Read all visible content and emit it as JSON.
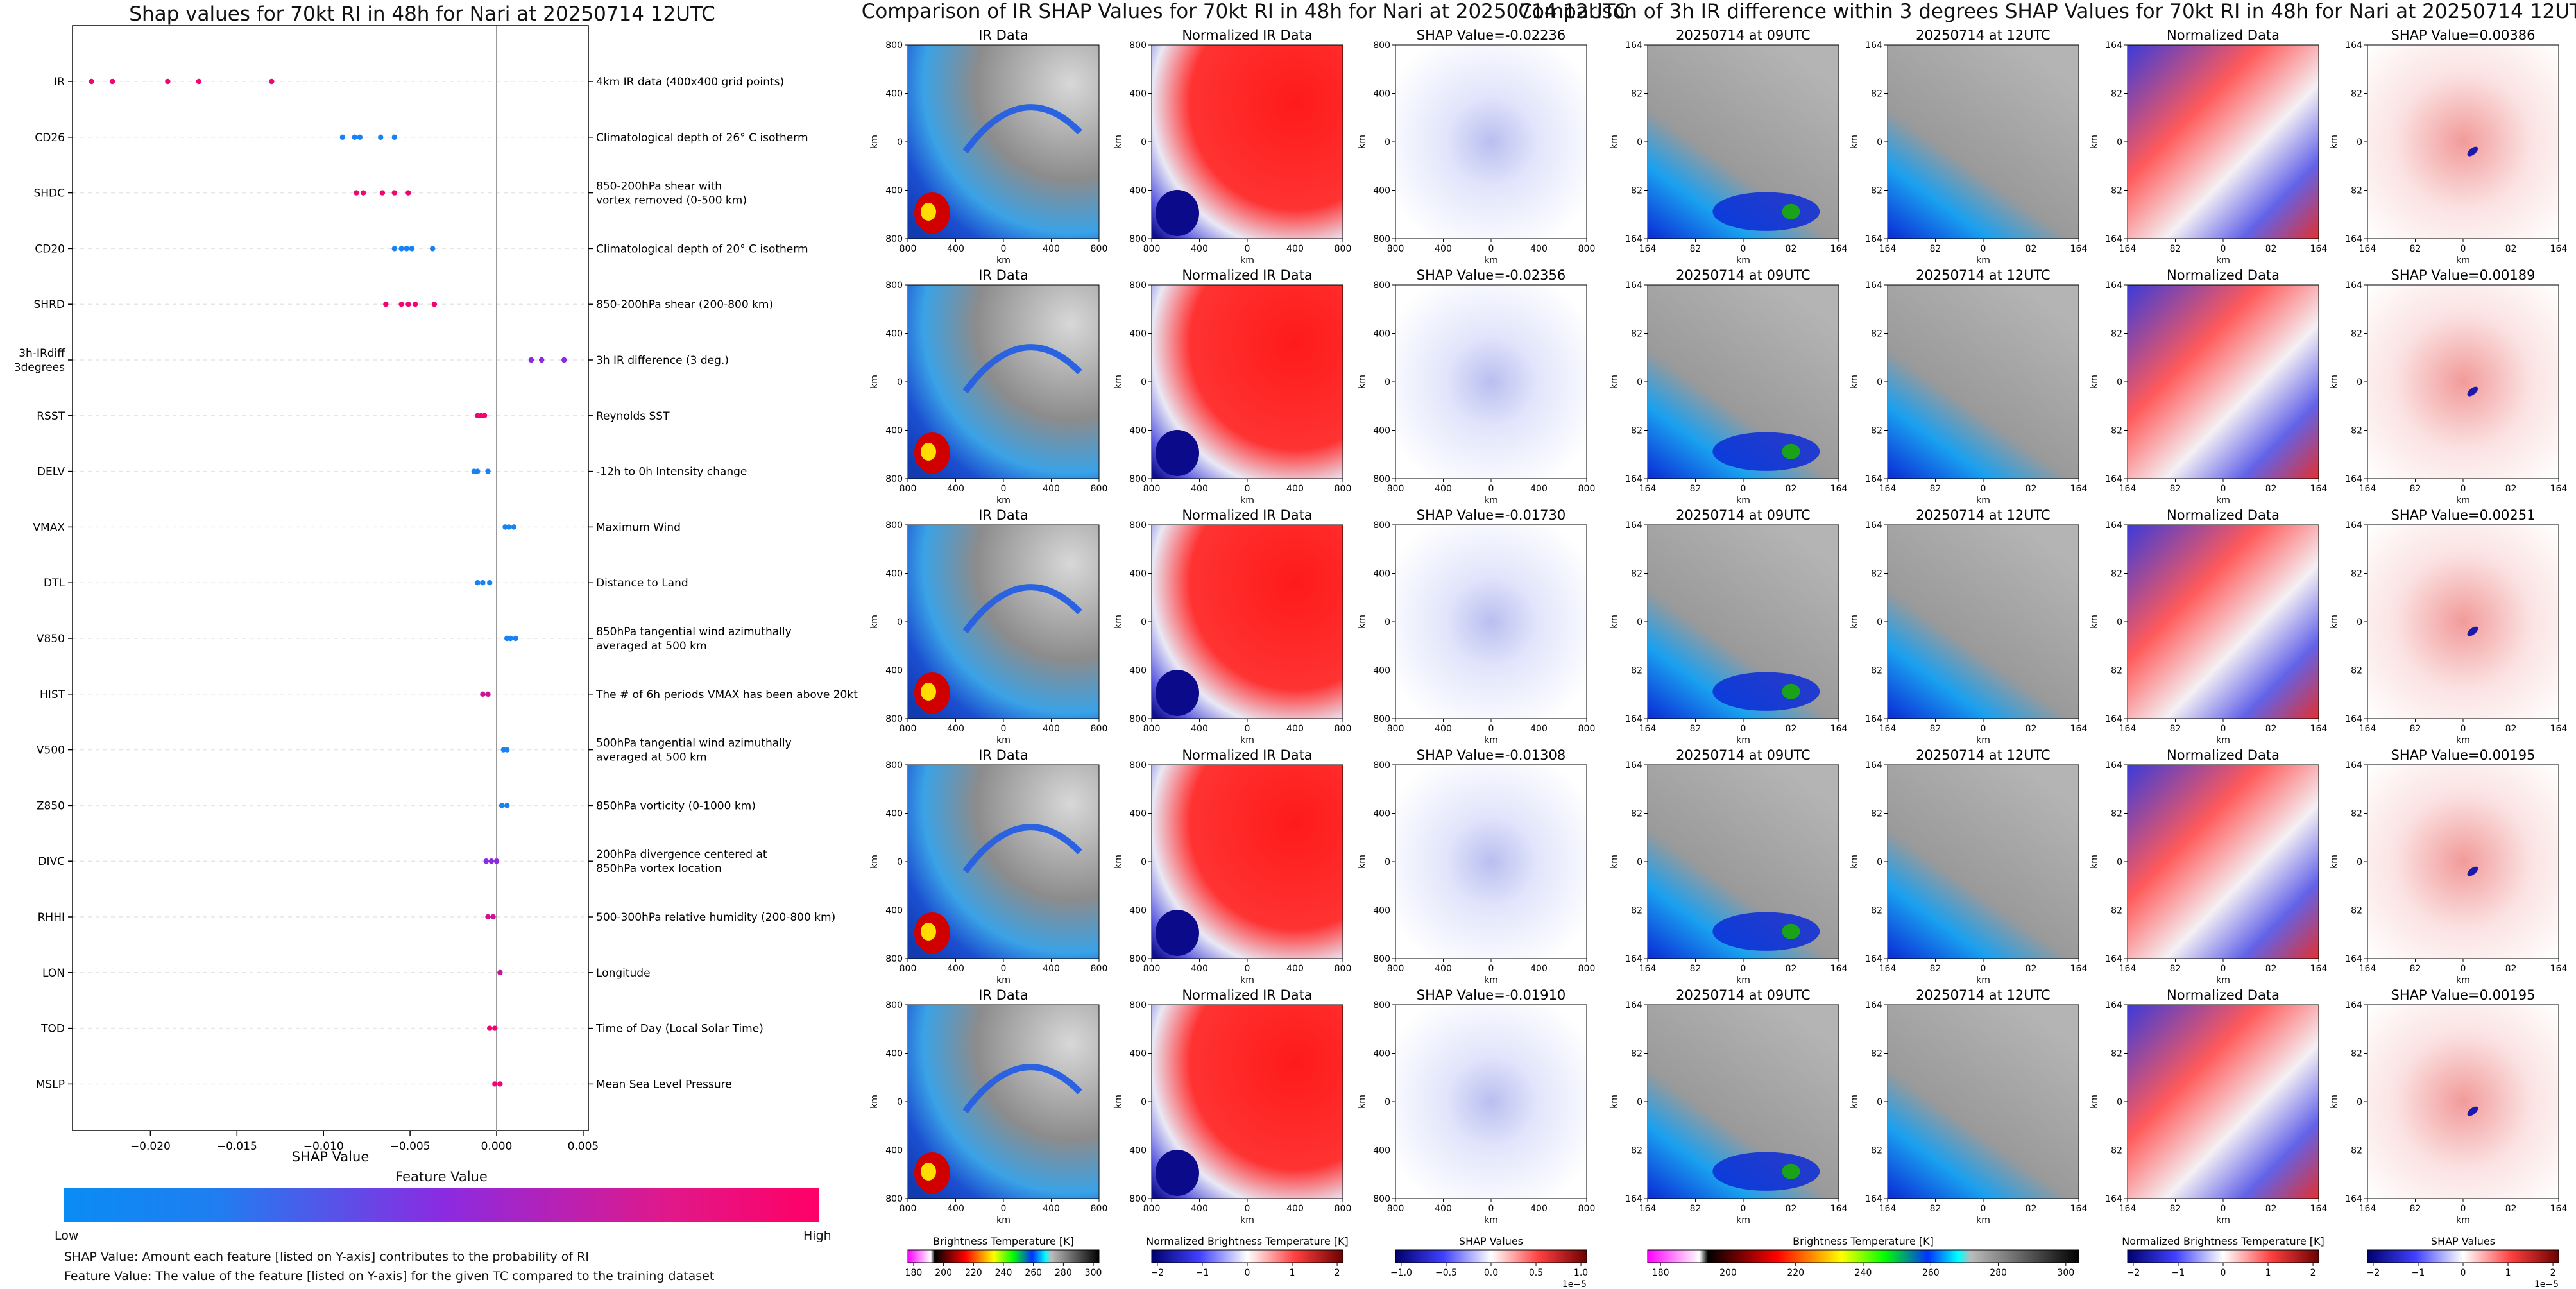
{
  "colors": {
    "low": "#0a8cf5",
    "mid": "#8a2be2",
    "high": "#ff0066",
    "axis": "#000000",
    "zero_line": "#999999"
  },
  "left_panel": {
    "title": "Shap values for 70kt RI in 48h for Nari at 20250714 12UTC",
    "xlabel": "SHAP Value",
    "colorbar_title": "Feature Value",
    "colorbar_low": "Low",
    "colorbar_high": "High",
    "footnote1": "SHAP Value: Amount each feature [listed on Y-axis] contributes to the probability of RI",
    "footnote2": "Feature Value: The value of the feature [listed on Y-axis] for the given TC compared to the training dataset"
  },
  "chart_data": [
    {
      "type": "scatter",
      "title": "Shap values for 70kt RI in 48h for Nari at 20250714 12UTC",
      "xlabel": "SHAP Value",
      "xlim": [
        -0.0245,
        0.0053
      ],
      "xticks": [
        -0.02,
        -0.015,
        -0.01,
        -0.005,
        0.0,
        0.005
      ],
      "xtick_labels": [
        "−0.020",
        "−0.015",
        "−0.010",
        "−0.005",
        "0.000",
        "0.005"
      ],
      "features": [
        {
          "code": "IR",
          "desc": "4km IR data (400x400 grid points)",
          "points": [
            {
              "x": -0.0234,
              "c": 0.95
            },
            {
              "x": -0.0222,
              "c": 0.95
            },
            {
              "x": -0.019,
              "c": 0.95
            },
            {
              "x": -0.0172,
              "c": 0.95
            },
            {
              "x": -0.013,
              "c": 0.95
            }
          ]
        },
        {
          "code": "CD26",
          "desc": "Climatological depth of 26° C isotherm",
          "points": [
            {
              "x": -0.0089,
              "c": 0.05
            },
            {
              "x": -0.0082,
              "c": 0.05
            },
            {
              "x": -0.0079,
              "c": 0.05
            },
            {
              "x": -0.0067,
              "c": 0.05
            },
            {
              "x": -0.0059,
              "c": 0.05
            }
          ]
        },
        {
          "code": "SHDC",
          "desc": "850-200hPa shear with\nvortex removed (0-500 km)",
          "points": [
            {
              "x": -0.0081,
              "c": 0.95
            },
            {
              "x": -0.0077,
              "c": 0.95
            },
            {
              "x": -0.0066,
              "c": 0.95
            },
            {
              "x": -0.0059,
              "c": 0.95
            },
            {
              "x": -0.0051,
              "c": 0.95
            }
          ]
        },
        {
          "code": "CD20",
          "desc": "Climatological depth of 20° C isotherm",
          "points": [
            {
              "x": -0.0059,
              "c": 0.05
            },
            {
              "x": -0.0055,
              "c": 0.05
            },
            {
              "x": -0.0052,
              "c": 0.05
            },
            {
              "x": -0.0049,
              "c": 0.05
            },
            {
              "x": -0.0037,
              "c": 0.05
            }
          ]
        },
        {
          "code": "SHRD",
          "desc": "850-200hPa shear (200-800 km)",
          "points": [
            {
              "x": -0.0064,
              "c": 0.95
            },
            {
              "x": -0.0055,
              "c": 0.95
            },
            {
              "x": -0.0051,
              "c": 0.95
            },
            {
              "x": -0.0047,
              "c": 0.95
            },
            {
              "x": -0.0036,
              "c": 0.95
            }
          ]
        },
        {
          "code": "3h-IRdiff\n3degrees",
          "desc": "3h IR difference (3 deg.)",
          "points": [
            {
              "x": 0.002,
              "c": 0.5
            },
            {
              "x": 0.0026,
              "c": 0.5
            },
            {
              "x": 0.0039,
              "c": 0.5
            }
          ]
        },
        {
          "code": "RSST",
          "desc": "Reynolds SST",
          "points": [
            {
              "x": -0.0011,
              "c": 0.95
            },
            {
              "x": -0.0009,
              "c": 0.95
            },
            {
              "x": -0.0007,
              "c": 0.95
            }
          ]
        },
        {
          "code": "DELV",
          "desc": "-12h to 0h Intensity change",
          "points": [
            {
              "x": -0.0013,
              "c": 0.05
            },
            {
              "x": -0.0011,
              "c": 0.05
            },
            {
              "x": -0.0005,
              "c": 0.05
            }
          ]
        },
        {
          "code": "VMAX",
          "desc": "Maximum Wind",
          "points": [
            {
              "x": 0.0005,
              "c": 0.05
            },
            {
              "x": 0.0007,
              "c": 0.05
            },
            {
              "x": 0.001,
              "c": 0.05
            }
          ]
        },
        {
          "code": "DTL",
          "desc": "Distance to Land",
          "points": [
            {
              "x": -0.0011,
              "c": 0.05
            },
            {
              "x": -0.0008,
              "c": 0.05
            },
            {
              "x": -0.0004,
              "c": 0.05
            }
          ]
        },
        {
          "code": "V850",
          "desc": "850hPa tangential wind azimuthally\naveraged at 500 km",
          "points": [
            {
              "x": 0.0006,
              "c": 0.05
            },
            {
              "x": 0.0008,
              "c": 0.05
            },
            {
              "x": 0.0011,
              "c": 0.05
            }
          ]
        },
        {
          "code": "HIST",
          "desc": "The # of 6h periods VMAX has been above 20kt",
          "points": [
            {
              "x": -0.0008,
              "c": 0.8
            },
            {
              "x": -0.0005,
              "c": 0.8
            }
          ]
        },
        {
          "code": "V500",
          "desc": "500hPa tangential wind azimuthally\naveraged at 500 km",
          "points": [
            {
              "x": 0.0004,
              "c": 0.05
            },
            {
              "x": 0.0006,
              "c": 0.05
            }
          ]
        },
        {
          "code": "Z850",
          "desc": "850hPa vorticity (0-1000 km)",
          "points": [
            {
              "x": 0.0003,
              "c": 0.05
            },
            {
              "x": 0.0006,
              "c": 0.05
            }
          ]
        },
        {
          "code": "DIVC",
          "desc": "200hPa divergence centered at\n850hPa vortex location",
          "points": [
            {
              "x": -0.0006,
              "c": 0.5
            },
            {
              "x": -0.0003,
              "c": 0.5
            },
            {
              "x": 0.0,
              "c": 0.5
            }
          ]
        },
        {
          "code": "RHHI",
          "desc": "500-300hPa relative humidity (200-800 km)",
          "points": [
            {
              "x": -0.0005,
              "c": 0.8
            },
            {
              "x": -0.0002,
              "c": 0.8
            }
          ]
        },
        {
          "code": "LON",
          "desc": "Longitude",
          "points": [
            {
              "x": 0.0002,
              "c": 0.8
            }
          ]
        },
        {
          "code": "TOD",
          "desc": "Time of Day (Local Solar Time)",
          "points": [
            {
              "x": -0.0004,
              "c": 0.95
            },
            {
              "x": -0.0001,
              "c": 0.95
            }
          ]
        },
        {
          "code": "MSLP",
          "desc": "Mean Sea Level Pressure",
          "points": [
            {
              "x": -0.0001,
              "c": 0.95
            },
            {
              "x": 0.0002,
              "c": 0.95
            }
          ]
        }
      ]
    }
  ],
  "section1": {
    "title": "Comparison of IR SHAP Values for 70kt RI in 48h for Nari at 20250714 12UTC",
    "col_titles": [
      "IR Data",
      "Normalized IR Data"
    ],
    "shap_titles": [
      "SHAP Value=-0.02236",
      "SHAP Value=-0.02356",
      "SHAP Value=-0.01730",
      "SHAP Value=-0.01308",
      "SHAP Value=-0.01910"
    ],
    "yticks": [
      "800",
      "400",
      "0",
      "400",
      "800"
    ],
    "xticks": [
      "800",
      "400",
      "0",
      "400",
      "800"
    ],
    "axis_unit": "km",
    "colorbars": [
      {
        "label": "Brightness Temperature [K]",
        "ticks": [
          "180",
          "200",
          "220",
          "240",
          "260",
          "280",
          "300"
        ]
      },
      {
        "label": "Normalized Brightness Temperature [K]",
        "ticks": [
          "−2",
          "−1",
          "0",
          "1",
          "2"
        ]
      },
      {
        "label": "SHAP Values",
        "ticks": [
          "−1.0",
          "−0.5",
          "0.0",
          "0.5",
          "1.0"
        ],
        "exponent": "1e−5"
      }
    ]
  },
  "section2": {
    "title": "Comparison of 3h IR difference within 3 degrees SHAP Values for 70kt RI in 48h for Nari at 20250714 12UTC",
    "col_titles": [
      "20250714 at 09UTC",
      "20250714 at 12UTC",
      "Normalized Data"
    ],
    "shap_titles": [
      "SHAP Value=0.00386",
      "SHAP Value=0.00189",
      "SHAP Value=0.00251",
      "SHAP Value=0.00195",
      "SHAP Value=0.00195"
    ],
    "yticks": [
      "164",
      "82",
      "0",
      "82",
      "164"
    ],
    "xticks": [
      "164",
      "82",
      "0",
      "82",
      "164"
    ],
    "axis_unit": "km",
    "colorbars": [
      {
        "label": "Brightness Temperature [K]",
        "ticks": [
          "180",
          "200",
          "220",
          "240",
          "260",
          "280",
          "300"
        ]
      },
      {
        "label": "Normalized Brightness Temperature [K]",
        "ticks": [
          "−2",
          "−1",
          "0",
          "1",
          "2"
        ]
      },
      {
        "label": "SHAP Values",
        "ticks": [
          "−2",
          "−1",
          "0",
          "1",
          "2"
        ],
        "exponent": "1e−5"
      }
    ]
  }
}
